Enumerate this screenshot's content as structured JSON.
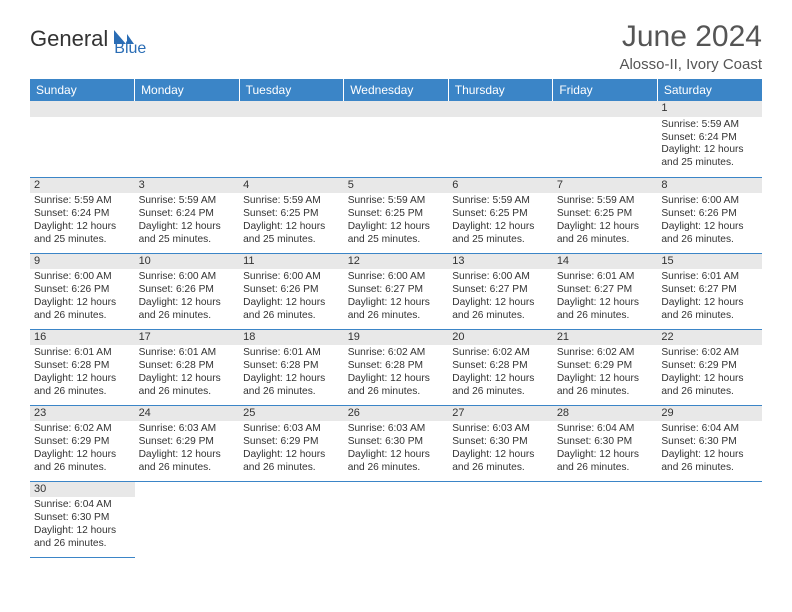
{
  "logo": {
    "general": "General",
    "blue": "Blue"
  },
  "header": {
    "month_title": "June 2024",
    "location": "Alosso-II, Ivory Coast"
  },
  "weekdays": [
    "Sunday",
    "Monday",
    "Tuesday",
    "Wednesday",
    "Thursday",
    "Friday",
    "Saturday"
  ],
  "colors": {
    "header_bg": "#3b85c7",
    "header_text": "#ffffff",
    "daynum_bg": "#e8e8e8",
    "border": "#3b85c7",
    "logo_blue": "#2a6db5",
    "text": "#333333"
  },
  "weeks": [
    [
      null,
      null,
      null,
      null,
      null,
      null,
      {
        "n": "1",
        "sr": "Sunrise: 5:59 AM",
        "ss": "Sunset: 6:24 PM",
        "dl": "Daylight: 12 hours and 25 minutes."
      }
    ],
    [
      {
        "n": "2",
        "sr": "Sunrise: 5:59 AM",
        "ss": "Sunset: 6:24 PM",
        "dl": "Daylight: 12 hours and 25 minutes."
      },
      {
        "n": "3",
        "sr": "Sunrise: 5:59 AM",
        "ss": "Sunset: 6:24 PM",
        "dl": "Daylight: 12 hours and 25 minutes."
      },
      {
        "n": "4",
        "sr": "Sunrise: 5:59 AM",
        "ss": "Sunset: 6:25 PM",
        "dl": "Daylight: 12 hours and 25 minutes."
      },
      {
        "n": "5",
        "sr": "Sunrise: 5:59 AM",
        "ss": "Sunset: 6:25 PM",
        "dl": "Daylight: 12 hours and 25 minutes."
      },
      {
        "n": "6",
        "sr": "Sunrise: 5:59 AM",
        "ss": "Sunset: 6:25 PM",
        "dl": "Daylight: 12 hours and 25 minutes."
      },
      {
        "n": "7",
        "sr": "Sunrise: 5:59 AM",
        "ss": "Sunset: 6:25 PM",
        "dl": "Daylight: 12 hours and 26 minutes."
      },
      {
        "n": "8",
        "sr": "Sunrise: 6:00 AM",
        "ss": "Sunset: 6:26 PM",
        "dl": "Daylight: 12 hours and 26 minutes."
      }
    ],
    [
      {
        "n": "9",
        "sr": "Sunrise: 6:00 AM",
        "ss": "Sunset: 6:26 PM",
        "dl": "Daylight: 12 hours and 26 minutes."
      },
      {
        "n": "10",
        "sr": "Sunrise: 6:00 AM",
        "ss": "Sunset: 6:26 PM",
        "dl": "Daylight: 12 hours and 26 minutes."
      },
      {
        "n": "11",
        "sr": "Sunrise: 6:00 AM",
        "ss": "Sunset: 6:26 PM",
        "dl": "Daylight: 12 hours and 26 minutes."
      },
      {
        "n": "12",
        "sr": "Sunrise: 6:00 AM",
        "ss": "Sunset: 6:27 PM",
        "dl": "Daylight: 12 hours and 26 minutes."
      },
      {
        "n": "13",
        "sr": "Sunrise: 6:00 AM",
        "ss": "Sunset: 6:27 PM",
        "dl": "Daylight: 12 hours and 26 minutes."
      },
      {
        "n": "14",
        "sr": "Sunrise: 6:01 AM",
        "ss": "Sunset: 6:27 PM",
        "dl": "Daylight: 12 hours and 26 minutes."
      },
      {
        "n": "15",
        "sr": "Sunrise: 6:01 AM",
        "ss": "Sunset: 6:27 PM",
        "dl": "Daylight: 12 hours and 26 minutes."
      }
    ],
    [
      {
        "n": "16",
        "sr": "Sunrise: 6:01 AM",
        "ss": "Sunset: 6:28 PM",
        "dl": "Daylight: 12 hours and 26 minutes."
      },
      {
        "n": "17",
        "sr": "Sunrise: 6:01 AM",
        "ss": "Sunset: 6:28 PM",
        "dl": "Daylight: 12 hours and 26 minutes."
      },
      {
        "n": "18",
        "sr": "Sunrise: 6:01 AM",
        "ss": "Sunset: 6:28 PM",
        "dl": "Daylight: 12 hours and 26 minutes."
      },
      {
        "n": "19",
        "sr": "Sunrise: 6:02 AM",
        "ss": "Sunset: 6:28 PM",
        "dl": "Daylight: 12 hours and 26 minutes."
      },
      {
        "n": "20",
        "sr": "Sunrise: 6:02 AM",
        "ss": "Sunset: 6:28 PM",
        "dl": "Daylight: 12 hours and 26 minutes."
      },
      {
        "n": "21",
        "sr": "Sunrise: 6:02 AM",
        "ss": "Sunset: 6:29 PM",
        "dl": "Daylight: 12 hours and 26 minutes."
      },
      {
        "n": "22",
        "sr": "Sunrise: 6:02 AM",
        "ss": "Sunset: 6:29 PM",
        "dl": "Daylight: 12 hours and 26 minutes."
      }
    ],
    [
      {
        "n": "23",
        "sr": "Sunrise: 6:02 AM",
        "ss": "Sunset: 6:29 PM",
        "dl": "Daylight: 12 hours and 26 minutes."
      },
      {
        "n": "24",
        "sr": "Sunrise: 6:03 AM",
        "ss": "Sunset: 6:29 PM",
        "dl": "Daylight: 12 hours and 26 minutes."
      },
      {
        "n": "25",
        "sr": "Sunrise: 6:03 AM",
        "ss": "Sunset: 6:29 PM",
        "dl": "Daylight: 12 hours and 26 minutes."
      },
      {
        "n": "26",
        "sr": "Sunrise: 6:03 AM",
        "ss": "Sunset: 6:30 PM",
        "dl": "Daylight: 12 hours and 26 minutes."
      },
      {
        "n": "27",
        "sr": "Sunrise: 6:03 AM",
        "ss": "Sunset: 6:30 PM",
        "dl": "Daylight: 12 hours and 26 minutes."
      },
      {
        "n": "28",
        "sr": "Sunrise: 6:04 AM",
        "ss": "Sunset: 6:30 PM",
        "dl": "Daylight: 12 hours and 26 minutes."
      },
      {
        "n": "29",
        "sr": "Sunrise: 6:04 AM",
        "ss": "Sunset: 6:30 PM",
        "dl": "Daylight: 12 hours and 26 minutes."
      }
    ],
    [
      {
        "n": "30",
        "sr": "Sunrise: 6:04 AM",
        "ss": "Sunset: 6:30 PM",
        "dl": "Daylight: 12 hours and 26 minutes."
      },
      null,
      null,
      null,
      null,
      null,
      null
    ]
  ]
}
